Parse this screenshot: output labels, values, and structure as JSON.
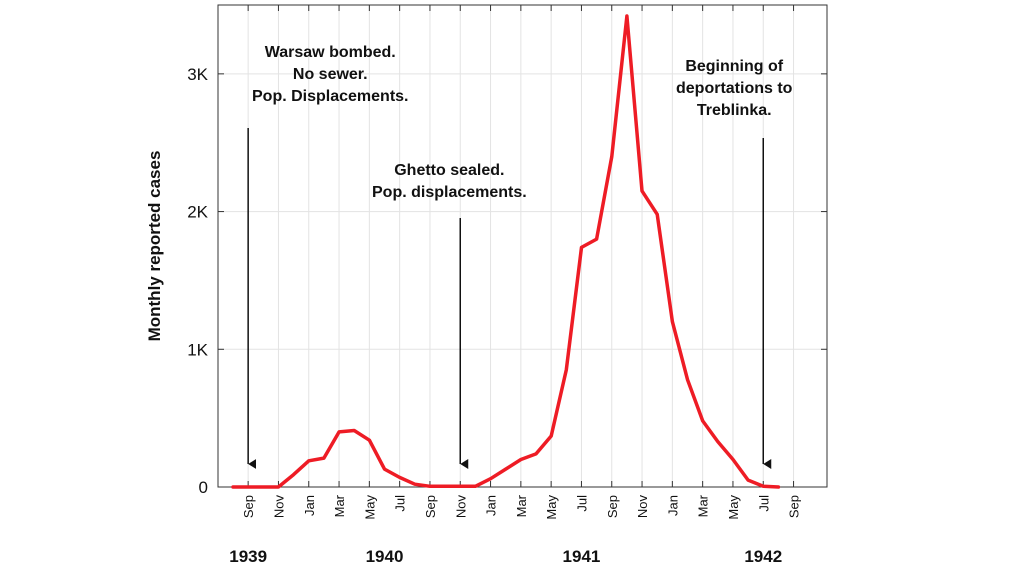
{
  "chart_data": {
    "type": "line",
    "ylabel": "Monthly reported cases",
    "ylim": [
      0,
      3500
    ],
    "yticks": [
      {
        "value": 0,
        "label": "0"
      },
      {
        "value": 1000,
        "label": "1K"
      },
      {
        "value": 2000,
        "label": "2K"
      },
      {
        "value": 3000,
        "label": "3K"
      }
    ],
    "grid": true,
    "xtick_labels": [
      "Sep",
      "Nov",
      "Jan",
      "Mar",
      "May",
      "Jul",
      "Sep",
      "Nov",
      "Jan",
      "Mar",
      "May",
      "Jul",
      "Sep",
      "Nov",
      "Jan",
      "Mar",
      "May",
      "Jul",
      "Sep"
    ],
    "year_labels": [
      {
        "label": "1939",
        "month": "Sep 1939"
      },
      {
        "label": "1940",
        "month": "Jun 1940"
      },
      {
        "label": "1941",
        "month": "Jul 1941"
      },
      {
        "label": "1942",
        "month": "Jul 1942"
      }
    ],
    "series": [
      {
        "color": "#ee1c25",
        "x": [
          "1939-08",
          "1939-09",
          "1939-10",
          "1939-11",
          "1939-12",
          "1940-01",
          "1940-02",
          "1940-03",
          "1940-04",
          "1940-05",
          "1940-06",
          "1940-07",
          "1940-08",
          "1940-09",
          "1940-10",
          "1940-11",
          "1940-12",
          "1941-01",
          "1941-02",
          "1941-03",
          "1941-04",
          "1941-05",
          "1941-06",
          "1941-07",
          "1941-08",
          "1941-09",
          "1941-10",
          "1941-11",
          "1941-12",
          "1942-01",
          "1942-02",
          "1942-03",
          "1942-04",
          "1942-05",
          "1942-06",
          "1942-07",
          "1942-08"
        ],
        "values": [
          0,
          0,
          0,
          0,
          90,
          190,
          210,
          400,
          410,
          340,
          130,
          70,
          20,
          5,
          5,
          5,
          5,
          60,
          130,
          200,
          240,
          370,
          850,
          1740,
          1800,
          2400,
          3420,
          2150,
          1980,
          1200,
          780,
          480,
          330,
          200,
          50,
          5,
          0
        ]
      }
    ],
    "annotations": [
      {
        "lines": [
          "Warsaw bombed.",
          "No sewer.",
          "Pop. Displacements."
        ],
        "arrow_month": "Sep 1939"
      },
      {
        "lines": [
          "Ghetto sealed.",
          "Pop. displacements."
        ],
        "arrow_month": "Nov 1940"
      },
      {
        "lines": [
          "Beginning of",
          "deportations to",
          "Treblinka."
        ],
        "arrow_month": "Jul 1942"
      }
    ]
  }
}
